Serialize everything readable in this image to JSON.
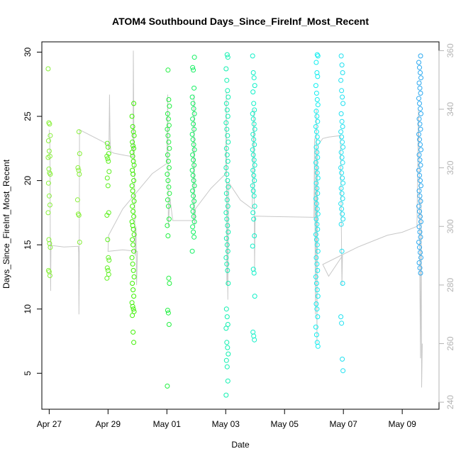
{
  "chart_data": {
    "type": "scatter",
    "title": "ATOM4 Southbound Days_Since_FireInf_Most_Recent",
    "xlabel": "Date",
    "ylabel": "Days_Since_FireInf_Most_Recent",
    "xlim": [
      26.75,
      40.25
    ],
    "ylim": [
      2.2,
      30.8
    ],
    "y2lim": [
      237.6,
      363.0
    ],
    "grid": false,
    "legend": "none",
    "x_ticks": [
      {
        "x": 27,
        "label": "Apr 27"
      },
      {
        "x": 29,
        "label": "Apr 29"
      },
      {
        "x": 31,
        "label": "May 01"
      },
      {
        "x": 33,
        "label": "May 03"
      },
      {
        "x": 35,
        "label": "May 05"
      },
      {
        "x": 37,
        "label": "May 07"
      },
      {
        "x": 39,
        "label": "May 09"
      }
    ],
    "y_ticks": [
      {
        "y": 5,
        "label": "5"
      },
      {
        "y": 10,
        "label": "10"
      },
      {
        "y": 15,
        "label": "15"
      },
      {
        "y": 20,
        "label": "20"
      },
      {
        "y": 25,
        "label": "25"
      },
      {
        "y": 30,
        "label": "30"
      }
    ],
    "y2_ticks": [
      {
        "y": 240,
        "label": "240"
      },
      {
        "y": 260,
        "label": "260"
      },
      {
        "y": 280,
        "label": "280"
      },
      {
        "y": 300,
        "label": "300"
      },
      {
        "y": 320,
        "label": "320"
      },
      {
        "y": 340,
        "label": "340"
      },
      {
        "y": 360,
        "label": "360"
      }
    ],
    "colors": {
      "apr27": "#88f03a",
      "apr29": "#5ef020",
      "apr30": "#3cf000",
      "may01": "#20f040",
      "may02": "#10f060",
      "may03": "#10f0b0",
      "may04": "#10f0c8",
      "may06": "#10eef0",
      "may07": "#20e0f0",
      "may09": "#2aa8f0",
      "line": "#c8c8c8"
    },
    "series": [
      {
        "date": "2024-04-27",
        "color_key": "apr27",
        "x": 27.0,
        "y": [
          28.7,
          24.5,
          24.4,
          23.5,
          23.1,
          22.3,
          21.9,
          21.8,
          20.9,
          20.6,
          20.5,
          19.8,
          18.8,
          18.1,
          17.5,
          15.4,
          15.1,
          14.8,
          13.0,
          12.9,
          12.6
        ]
      },
      {
        "date": "2024-04-28",
        "color_key": "apr27",
        "x": 28.0,
        "y": [
          23.8,
          22.1,
          21.0,
          20.8,
          20.5,
          18.5,
          17.4,
          17.3,
          15.2
        ]
      },
      {
        "date": "2024-04-29",
        "color_key": "apr29",
        "x": 29.0,
        "y": [
          22.9,
          22.6,
          22.1,
          21.9,
          21.7,
          21.5,
          20.7,
          20.2,
          19.6,
          17.5,
          17.3,
          15.4,
          14.0,
          13.8,
          13.2,
          13.0,
          12.7,
          12.4
        ]
      },
      {
        "date": "2024-04-30",
        "color_key": "apr30",
        "x": 29.85,
        "y": [
          26.0,
          25.0,
          24.2,
          23.8,
          23.5,
          23.0,
          22.7,
          22.5,
          22.2,
          21.9,
          21.5,
          21.2,
          20.8,
          20.5,
          20.0,
          19.6,
          19.2,
          18.8,
          18.4,
          18.0,
          17.6,
          17.2,
          16.8,
          16.5,
          16.2,
          15.8,
          15.4,
          15.0,
          14.5,
          14.0,
          13.5,
          13.0,
          12.5,
          12.0,
          11.5,
          11.0,
          10.5,
          10.2,
          10.0,
          9.8,
          9.5,
          8.2,
          7.4
        ]
      },
      {
        "date": "2024-05-01",
        "color_key": "may01",
        "x": 31.05,
        "y": [
          28.6,
          26.3,
          25.8,
          25.2,
          24.8,
          24.3,
          24.0,
          23.5,
          23.0,
          22.5,
          22.0,
          21.5,
          21.0,
          20.5,
          20.0,
          19.5,
          19.0,
          18.5,
          18.0,
          17.0,
          16.5,
          15.7,
          12.4,
          12.0,
          9.9,
          9.7,
          8.8,
          4.0
        ]
      },
      {
        "date": "2024-05-02",
        "color_key": "may02",
        "x": 31.9,
        "y": [
          29.6,
          28.8,
          28.6,
          27.2,
          26.5,
          26.0,
          25.6,
          25.2,
          24.8,
          24.4,
          24.0,
          23.6,
          23.2,
          22.8,
          22.4,
          22.0,
          21.6,
          21.2,
          20.8,
          20.4,
          20.0,
          19.6,
          19.2,
          18.8,
          18.4,
          18.0,
          17.6,
          17.2,
          16.8,
          16.4,
          16.0,
          15.6,
          14.5
        ]
      },
      {
        "date": "2024-05-03",
        "color_key": "may03",
        "x": 33.05,
        "y": [
          29.8,
          29.6,
          28.7,
          27.8,
          27.0,
          26.5,
          26.0,
          25.5,
          25.0,
          24.5,
          24.0,
          23.5,
          23.0,
          22.5,
          22.0,
          21.5,
          21.0,
          20.5,
          20.0,
          19.5,
          19.0,
          18.5,
          18.0,
          17.5,
          17.0,
          16.5,
          16.0,
          15.5,
          15.0,
          14.5,
          14.0,
          13.5,
          13.0,
          12.0,
          10.0,
          9.4,
          8.8,
          8.5,
          7.4,
          7.0,
          6.5,
          6.0,
          5.5,
          4.4,
          3.3
        ]
      },
      {
        "date": "2024-05-04",
        "color_key": "may04",
        "x": 33.95,
        "y": [
          29.7,
          28.4,
          28.0,
          27.4,
          26.9,
          26.0,
          25.5,
          25.2,
          24.8,
          24.4,
          24.0,
          23.6,
          23.2,
          22.8,
          22.4,
          22.0,
          21.6,
          21.2,
          20.8,
          20.4,
          20.0,
          19.6,
          19.2,
          18.8,
          18.0,
          17.5,
          17.0,
          15.7,
          14.9,
          13.1,
          12.8,
          11.0,
          8.2,
          7.9,
          7.6
        ]
      },
      {
        "date": "2024-05-06",
        "color_key": "may06",
        "x": 36.1,
        "y": [
          29.8,
          29.7,
          29.2,
          28.4,
          28.1,
          27.4,
          26.8,
          26.3,
          25.9,
          25.4,
          25.0,
          24.6,
          24.2,
          23.8,
          23.4,
          23.0,
          22.6,
          22.2,
          21.8,
          21.4,
          21.0,
          20.6,
          20.2,
          19.8,
          19.4,
          19.0,
          18.6,
          18.2,
          17.8,
          17.4,
          17.0,
          16.6,
          16.2,
          15.8,
          15.4,
          15.0,
          14.5,
          14.0,
          13.5,
          13.0,
          12.5,
          12.0,
          11.5,
          11.0,
          10.4,
          10.0,
          9.4,
          8.6,
          8.0,
          7.4,
          7.1
        ]
      },
      {
        "date": "2024-05-07",
        "color_key": "may07",
        "x": 36.95,
        "y": [
          29.7,
          29.0,
          28.4,
          27.8,
          27.0,
          26.5,
          26.0,
          25.2,
          24.6,
          24.2,
          23.8,
          23.4,
          23.0,
          22.6,
          22.2,
          21.8,
          21.4,
          21.0,
          20.6,
          20.2,
          19.8,
          19.4,
          19.0,
          18.6,
          18.2,
          17.8,
          17.4,
          17.0,
          16.6,
          14.5,
          12.0,
          9.4,
          8.9,
          6.1,
          5.2
        ]
      },
      {
        "date": "2024-05-09",
        "color_key": "may09",
        "x": 39.6,
        "y": [
          29.7,
          29.2,
          28.8,
          28.4,
          28.0,
          27.6,
          27.2,
          26.8,
          26.4,
          26.0,
          25.6,
          25.2,
          24.8,
          24.4,
          24.0,
          23.6,
          23.2,
          22.8,
          22.4,
          22.0,
          21.6,
          21.2,
          20.8,
          20.4,
          20.0,
          19.6,
          19.2,
          18.8,
          18.4,
          18.0,
          17.6,
          17.2,
          16.8,
          16.4,
          16.0,
          15.6,
          15.2,
          14.8,
          14.4,
          14.0,
          13.6,
          13.2,
          12.8
        ]
      }
    ],
    "secondary_line": {
      "axis": "right",
      "color_key": "line",
      "points": [
        [
          27.0,
          333.0
        ],
        [
          27.02,
          330.0
        ],
        [
          27.03,
          320.0
        ],
        [
          27.04,
          290.0
        ],
        [
          27.05,
          278.0
        ],
        [
          27.06,
          295.0
        ],
        [
          27.08,
          293.5
        ],
        [
          27.5,
          293.0
        ],
        [
          27.99,
          293.2
        ],
        [
          28.0,
          291.0
        ],
        [
          28.01,
          270.0
        ],
        [
          28.02,
          283.0
        ],
        [
          28.03,
          333.0
        ],
        [
          29.0,
          328.0
        ],
        [
          29.03,
          326.0
        ],
        [
          29.05,
          345.0
        ],
        [
          29.07,
          330.0
        ],
        [
          29.09,
          325.5
        ],
        [
          29.2,
          325.0
        ],
        [
          29.4,
          324.6
        ],
        [
          29.6,
          324.2
        ],
        [
          29.85,
          323.8
        ],
        [
          29.86,
          360.0
        ],
        [
          29.88,
          330.0
        ],
        [
          29.9,
          315.0
        ],
        [
          29.92,
          290.0
        ],
        [
          29.95,
          300.0
        ],
        [
          29.97,
          280.0
        ],
        [
          30.0,
          291.5
        ],
        [
          29.5,
          292.0
        ],
        [
          29.0,
          291.5
        ],
        [
          29.02,
          297.0
        ],
        [
          29.5,
          306.0
        ],
        [
          30.0,
          312.0
        ],
        [
          30.5,
          318.0
        ],
        [
          31.0,
          321.5
        ],
        [
          31.03,
          345.0
        ],
        [
          31.05,
          300.0
        ],
        [
          31.1,
          310.0
        ],
        [
          31.2,
          302.0
        ],
        [
          31.4,
          302.0
        ],
        [
          31.6,
          302.0
        ],
        [
          31.9,
          302.0
        ],
        [
          31.92,
          345.0
        ],
        [
          31.94,
          300.0
        ],
        [
          31.97,
          306.0
        ],
        [
          32.5,
          313.0
        ],
        [
          33.0,
          318.0
        ],
        [
          33.02,
          346.0
        ],
        [
          33.04,
          280.0
        ],
        [
          33.05,
          315.0
        ],
        [
          33.07,
          275.0
        ],
        [
          33.1,
          315.0
        ],
        [
          33.5,
          309.0
        ],
        [
          33.9,
          306.0
        ],
        [
          33.93,
          322.0
        ],
        [
          33.96,
          340.0
        ],
        [
          33.98,
          285.0
        ],
        [
          34.0,
          303.5
        ],
        [
          35.0,
          303.3
        ],
        [
          36.0,
          303.1
        ],
        [
          36.02,
          330.0
        ],
        [
          36.05,
          270.0
        ],
        [
          36.08,
          340.0
        ],
        [
          36.1,
          260.0
        ],
        [
          36.12,
          325.0
        ],
        [
          36.15,
          328.0
        ],
        [
          36.3,
          330.0
        ],
        [
          36.5,
          330.5
        ],
        [
          36.9,
          331.0
        ],
        [
          36.92,
          310.0
        ],
        [
          36.95,
          280.0
        ],
        [
          36.97,
          290.0
        ],
        [
          36.5,
          283.0
        ],
        [
          36.3,
          287.0
        ],
        [
          36.9,
          290.0
        ],
        [
          37.5,
          293.0
        ],
        [
          38.0,
          295.0
        ],
        [
          38.5,
          297.0
        ],
        [
          39.0,
          298.0
        ],
        [
          39.5,
          300.0
        ],
        [
          39.55,
          340.0
        ],
        [
          39.58,
          320.0
        ],
        [
          39.6,
          280.0
        ],
        [
          39.62,
          255.0
        ],
        [
          39.64,
          310.0
        ],
        [
          39.66,
          245.0
        ],
        [
          39.68,
          260.0
        ]
      ]
    }
  }
}
